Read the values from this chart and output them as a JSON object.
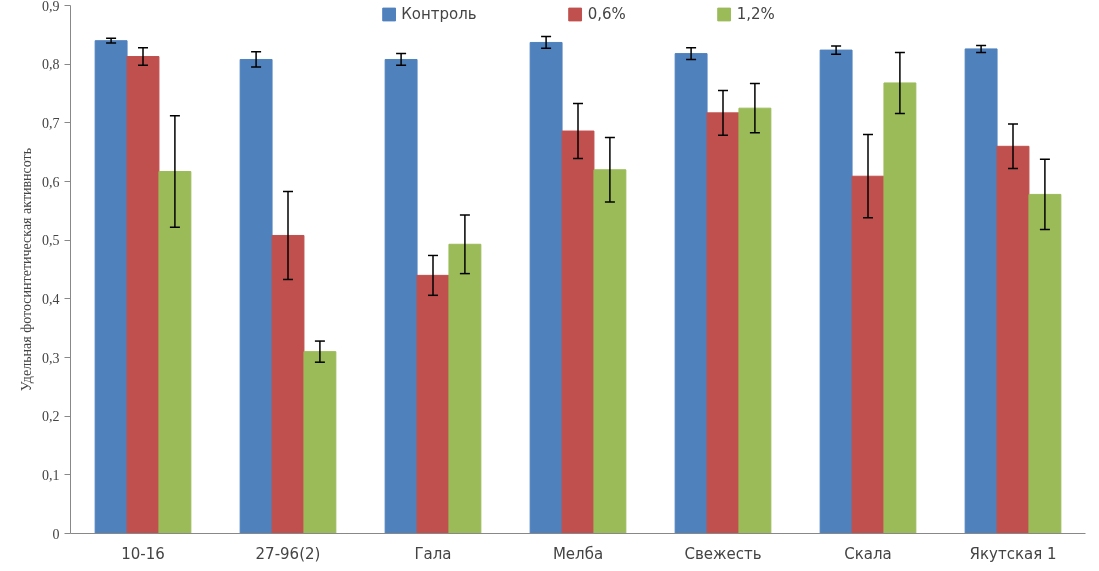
{
  "chart_data": {
    "type": "bar",
    "ylabel": "Удельная фотосинтетическая активнсоть",
    "categories": [
      "10-16",
      "27-96(2)",
      "Гала",
      "Мелба",
      "Свежесть",
      "Скала",
      "Якутская 1"
    ],
    "series": [
      {
        "name": "Контроль",
        "color": "#4f81bd",
        "values": [
          0.84,
          0.808,
          0.808,
          0.837,
          0.818,
          0.824,
          0.826
        ],
        "errors": [
          0.004,
          0.013,
          0.01,
          0.01,
          0.01,
          0.007,
          0.006
        ]
      },
      {
        "name": "0,6%",
        "color": "#c0504d",
        "values": [
          0.813,
          0.508,
          0.44,
          0.686,
          0.717,
          0.609,
          0.66
        ],
        "errors": [
          0.015,
          0.075,
          0.034,
          0.047,
          0.038,
          0.071,
          0.038
        ]
      },
      {
        "name": "1,2%",
        "color": "#9bbb59",
        "values": [
          0.617,
          0.31,
          0.493,
          0.62,
          0.725,
          0.768,
          0.578
        ],
        "errors": [
          0.095,
          0.018,
          0.05,
          0.055,
          0.042,
          0.052,
          0.06
        ]
      }
    ],
    "ylim": [
      0,
      0.9
    ],
    "yticks": [
      {
        "value": 0,
        "label": "0"
      },
      {
        "value": 0.1,
        "label": "0,1"
      },
      {
        "value": 0.2,
        "label": "0,2"
      },
      {
        "value": 0.3,
        "label": "0,3"
      },
      {
        "value": 0.4,
        "label": "0,4"
      },
      {
        "value": 0.5,
        "label": "0,5"
      },
      {
        "value": 0.6,
        "label": "0,6"
      },
      {
        "value": 0.7,
        "label": "0,7"
      },
      {
        "value": 0.8,
        "label": "0,8"
      },
      {
        "value": 0.9,
        "label": "0,9"
      }
    ],
    "grid": false,
    "legend": "top"
  }
}
